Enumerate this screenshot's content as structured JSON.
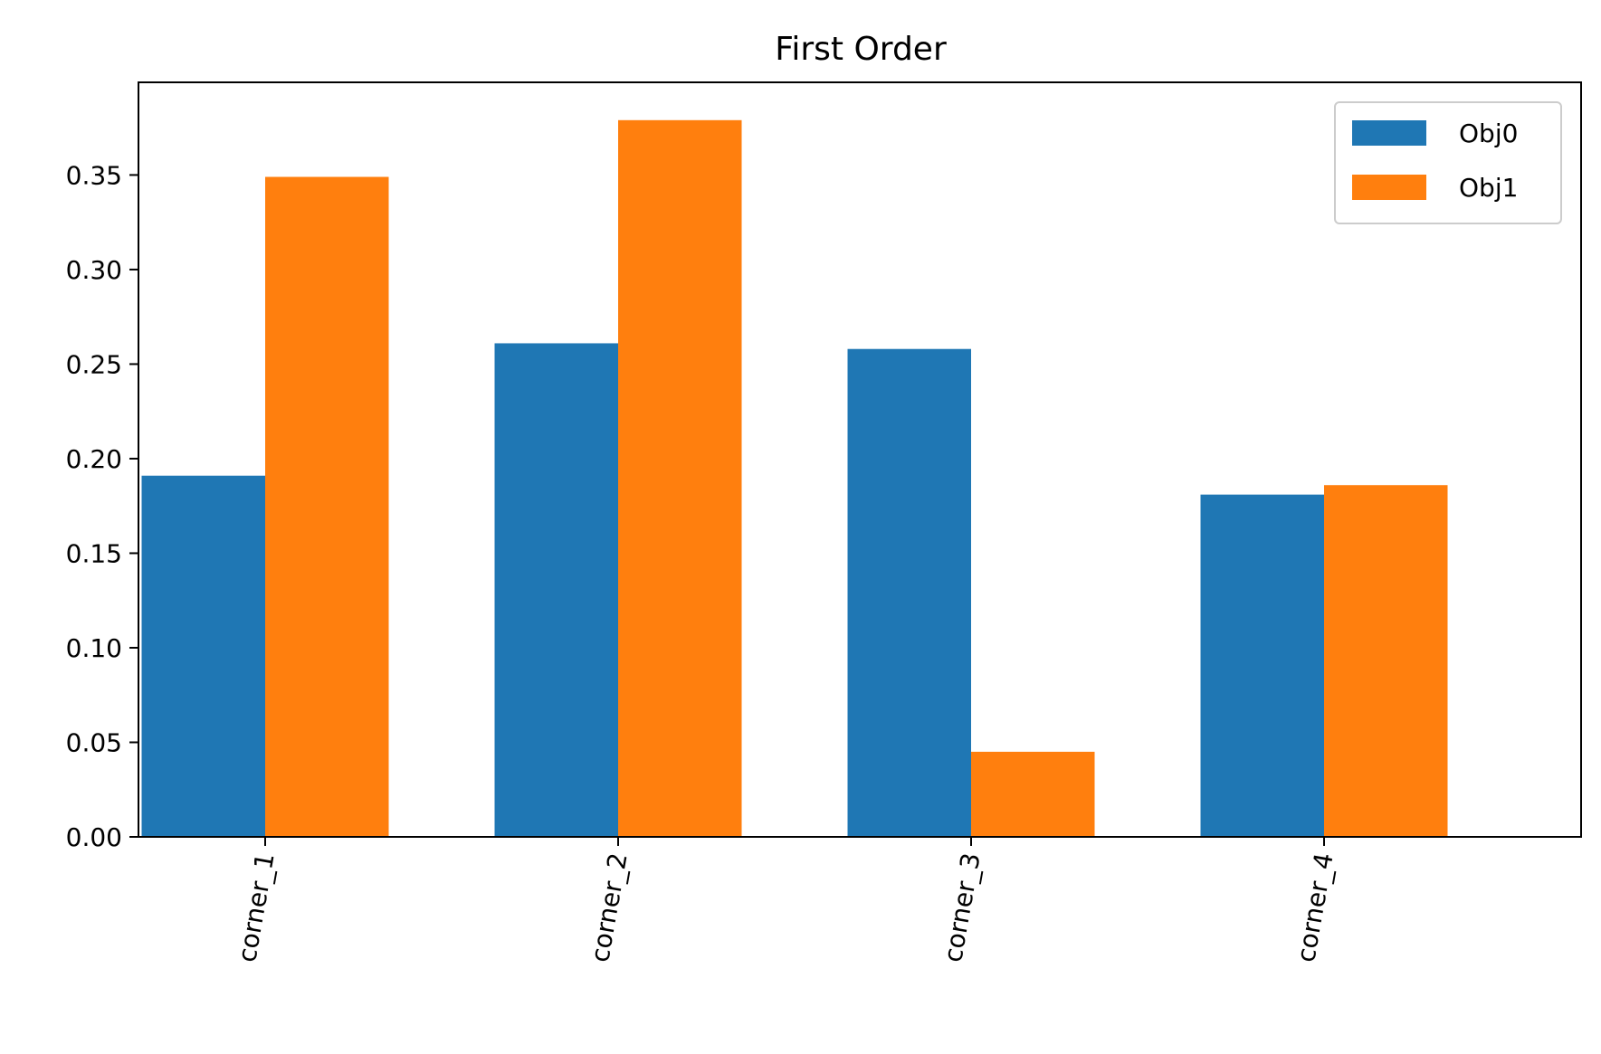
{
  "chart_data": {
    "type": "bar",
    "title": "First Order",
    "xlabel": "",
    "ylabel": "",
    "categories": [
      "corner_1",
      "corner_2",
      "corner_3",
      "corner_4"
    ],
    "series": [
      {
        "name": "Obj0",
        "color": "#1f77b4",
        "values": [
          0.191,
          0.261,
          0.258,
          0.181
        ]
      },
      {
        "name": "Obj1",
        "color": "#ff7f0e",
        "values": [
          0.349,
          0.379,
          0.045,
          0.186
        ]
      }
    ],
    "ylim": [
      0,
      0.399
    ],
    "yticks": [
      0.0,
      0.05,
      0.1,
      0.15,
      0.2,
      0.25,
      0.3,
      0.35
    ],
    "ytick_labels": [
      "0.00",
      "0.05",
      "0.10",
      "0.15",
      "0.20",
      "0.25",
      "0.30",
      "0.35"
    ],
    "grid": false,
    "legend_position": "top-right"
  }
}
